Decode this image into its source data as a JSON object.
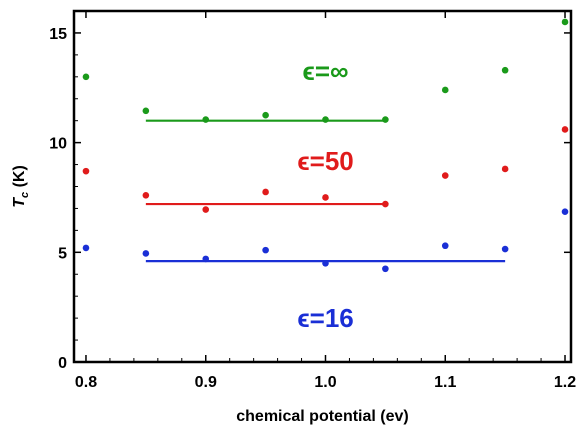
{
  "chart_data": {
    "type": "scatter",
    "xlabel": "chemical potential (ev)",
    "ylabel_main": "T",
    "ylabel_sub": "c",
    "ylabel_unit": " (K)",
    "xlim": [
      0.79,
      1.205
    ],
    "ylim": [
      0,
      16
    ],
    "x_ticks": [
      0.8,
      0.9,
      1.0,
      1.1,
      1.2
    ],
    "x_tick_labels": [
      "0.8",
      "0.9",
      "1.0",
      "1.1",
      "1.2"
    ],
    "y_ticks": [
      0,
      5,
      10,
      15
    ],
    "y_tick_labels": [
      "0",
      "5",
      "10",
      "15"
    ],
    "series": [
      {
        "label": "ϵ=∞",
        "color": "#1a9a1a",
        "label_pos": [
          1.0,
          12.85
        ],
        "x": [
          0.8,
          0.85,
          0.9,
          0.95,
          1.0,
          1.05,
          1.1,
          1.15,
          1.2
        ],
        "y": [
          13.0,
          11.45,
          11.05,
          11.25,
          11.05,
          11.05,
          12.4,
          13.3,
          15.5
        ],
        "fit": {
          "x": [
            0.85,
            1.05
          ],
          "y": 11.0
        }
      },
      {
        "label": "ϵ=50",
        "color": "#e01b1b",
        "label_pos": [
          1.0,
          8.75
        ],
        "x": [
          0.8,
          0.85,
          0.9,
          0.95,
          1.0,
          1.05,
          1.1,
          1.15,
          1.2
        ],
        "y": [
          8.7,
          7.6,
          6.95,
          7.75,
          7.5,
          7.2,
          8.5,
          8.8,
          10.6
        ],
        "fit": {
          "x": [
            0.85,
            1.05
          ],
          "y": 7.2
        }
      },
      {
        "label": "ϵ=16",
        "color": "#1a2fd6",
        "label_pos": [
          1.0,
          1.6
        ],
        "x": [
          0.8,
          0.85,
          0.9,
          0.95,
          1.0,
          1.05,
          1.1,
          1.15,
          1.2
        ],
        "y": [
          5.2,
          4.95,
          4.7,
          5.1,
          4.5,
          4.25,
          5.3,
          5.15,
          6.85
        ],
        "fit": {
          "x": [
            0.85,
            1.15
          ],
          "y": 4.6
        }
      }
    ]
  }
}
